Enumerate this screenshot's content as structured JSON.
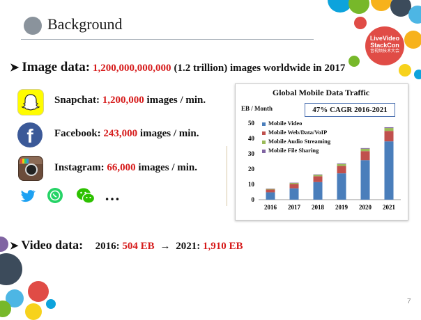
{
  "slide": {
    "title": "Background",
    "page_number": "7",
    "logo": {
      "line1": "LiveVideo",
      "line2": "StackCon",
      "sub": "音视频技术大会"
    }
  },
  "image_data": {
    "label": "Image data:",
    "value": "1,200,000,000,000",
    "rest": "(1.2 trillion) images worldwide in 2017"
  },
  "apps": [
    {
      "name": "snapchat",
      "label": "Snapchat: ",
      "value": "1,200,000",
      "unit": " images / min."
    },
    {
      "name": "facebook",
      "label": "Facebook: ",
      "value": "243,000",
      "unit": " images / min."
    },
    {
      "name": "instagram",
      "label": "Instagram: ",
      "value": "66,000",
      "unit": " images / min."
    }
  ],
  "more_apps_ellipsis": "…",
  "video_data": {
    "label": "Video data:",
    "year1": "2016: ",
    "value1": "504 EB",
    "arrow": "→",
    "year2": "2021: ",
    "value2": "1,910 EB"
  },
  "chart_data": {
    "type": "bar",
    "stacked": true,
    "title": "Global Mobile Data Traffic",
    "ylabel": "EB / Month",
    "annotation": "47% CAGR 2016-2021",
    "categories": [
      "2016",
      "2017",
      "2018",
      "2019",
      "2020",
      "2021"
    ],
    "yticks": [
      "0",
      "10",
      "20",
      "30",
      "40",
      "50"
    ],
    "ylim": [
      0,
      50
    ],
    "legend_position": "top-left",
    "series": [
      {
        "name": "Mobile Video",
        "color": "#4a7ebb",
        "values": [
          4.8,
          7.4,
          11.5,
          17.2,
          25.8,
          38.1
        ]
      },
      {
        "name": "Mobile Web/Data/VoIP",
        "color": "#c0504d",
        "values": [
          1.8,
          2.8,
          3.8,
          4.8,
          5.9,
          6.8
        ]
      },
      {
        "name": "Mobile Audio Streaming",
        "color": "#9bbb59",
        "values": [
          0.4,
          0.7,
          0.9,
          1.3,
          1.6,
          1.9
        ]
      },
      {
        "name": "Mobile File Sharing",
        "color": "#8064a2",
        "values": [
          0.2,
          0.2,
          0.3,
          0.4,
          0.4,
          0.5
        ]
      }
    ]
  }
}
